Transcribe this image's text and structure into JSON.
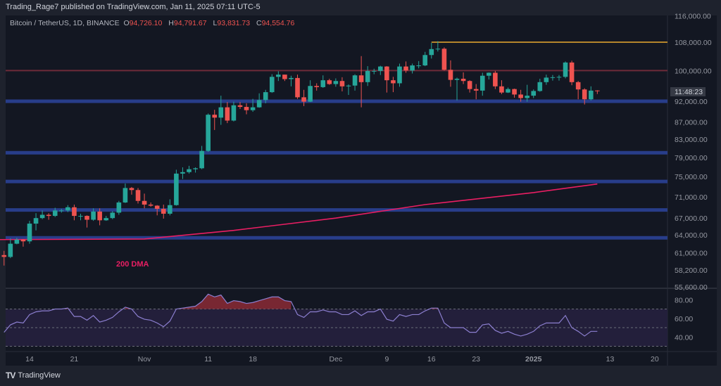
{
  "header": {
    "published": "Trading_Rage7 published on TradingView.com, Jan 11, 2025 07:11 UTC-5"
  },
  "legend": {
    "symbol": "Bitcoin / TetherUS, 1D, BINANCE",
    "o_label": "O",
    "o": "94,726.10",
    "h_label": "H",
    "h": "94,791.67",
    "l_label": "L",
    "l": "93,831.73",
    "c_label": "C",
    "c": "94,554.76"
  },
  "footer": {
    "brand": "TradingView",
    "logo": "TV"
  },
  "colors": {
    "up": "#26a69a",
    "down": "#ef5350",
    "ma": "#e91e63",
    "level_blue": "#283d8a",
    "level_red": "#6e2b3a",
    "level_orange": "#b5852c",
    "rsi_line": "#8c7fd0",
    "rsi_band": "#231f3b",
    "overbought_fill": "#8b2a35"
  },
  "chart_data": [
    {
      "type": "candlestick",
      "title": "",
      "scale": "log",
      "ylim": [
        55600,
        116000
      ],
      "price_ticks": [
        "116,000.00",
        "108,000.00",
        "100,000.00",
        "92,000.00",
        "87,000.00",
        "83,000.00",
        "79,000.00",
        "75,000.00",
        "71,000.00",
        "67,000.00",
        "64,000.00",
        "61,000.00",
        "58,200.00",
        "55,600.00"
      ],
      "countdown": "11:48:23",
      "x_ticks": [
        {
          "label": "14",
          "date": "2024-10-14"
        },
        {
          "label": "21",
          "date": "2024-10-21"
        },
        {
          "label": "Nov",
          "date": "2024-11-01"
        },
        {
          "label": "11",
          "date": "2024-11-11"
        },
        {
          "label": "18",
          "date": "2024-11-18"
        },
        {
          "label": "Dec",
          "date": "2024-12-01"
        },
        {
          "label": "9",
          "date": "2024-12-09"
        },
        {
          "label": "16",
          "date": "2024-12-16"
        },
        {
          "label": "23",
          "date": "2024-12-23"
        },
        {
          "label": "2025",
          "date": "2025-01-01"
        },
        {
          "label": "13",
          "date": "2025-01-13"
        },
        {
          "label": "20",
          "date": "2025-01-20"
        }
      ],
      "x_range": [
        "2024-10-09",
        "2025-01-22"
      ],
      "start_date": "2024-10-10",
      "ohlc": [
        [
          60600,
          61300,
          58900,
          60300
        ],
        [
          60300,
          63400,
          60100,
          62500
        ],
        [
          62500,
          63500,
          62400,
          63200
        ],
        [
          63200,
          63300,
          62000,
          62900
        ],
        [
          62900,
          66500,
          62500,
          66000
        ],
        [
          66000,
          67900,
          64800,
          67000
        ],
        [
          67000,
          68400,
          66800,
          67600
        ],
        [
          67600,
          67900,
          66700,
          67400
        ],
        [
          67400,
          68900,
          67200,
          68400
        ],
        [
          68400,
          68700,
          68000,
          68400
        ],
        [
          68400,
          69400,
          68100,
          69000
        ],
        [
          69000,
          69500,
          66600,
          67400
        ],
        [
          67400,
          67800,
          66600,
          67400
        ],
        [
          67400,
          67500,
          65300,
          66700
        ],
        [
          66700,
          68800,
          66500,
          68200
        ],
        [
          68200,
          68800,
          65700,
          66600
        ],
        [
          66600,
          67400,
          66500,
          67000
        ],
        [
          67000,
          68300,
          66800,
          68000
        ],
        [
          68000,
          70200,
          67600,
          69900
        ],
        [
          69900,
          73600,
          69800,
          72700
        ],
        [
          72700,
          72900,
          71400,
          72300
        ],
        [
          72300,
          72700,
          69700,
          70200
        ],
        [
          70200,
          71600,
          68800,
          69500
        ],
        [
          69500,
          69900,
          69100,
          69300
        ],
        [
          69300,
          69400,
          67500,
          68700
        ],
        [
          68700,
          69500,
          66900,
          67800
        ],
        [
          67800,
          70500,
          67500,
          69400
        ],
        [
          69400,
          76400,
          69300,
          75600
        ],
        [
          75600,
          76900,
          74500,
          75900
        ],
        [
          75900,
          77200,
          75600,
          76500
        ],
        [
          76500,
          76900,
          75800,
          76700
        ],
        [
          76700,
          81500,
          76500,
          80400
        ],
        [
          80400,
          89000,
          80200,
          88700
        ],
        [
          88700,
          89900,
          85100,
          88000
        ],
        [
          88000,
          93400,
          86300,
          90500
        ],
        [
          90500,
          91800,
          86700,
          87300
        ],
        [
          87300,
          91900,
          87100,
          91000
        ],
        [
          91000,
          91800,
          90100,
          90600
        ],
        [
          90600,
          91500,
          88800,
          89800
        ],
        [
          89800,
          92600,
          89400,
          90500
        ],
        [
          90500,
          94000,
          90400,
          92300
        ],
        [
          92300,
          94900,
          91500,
          94300
        ],
        [
          94300,
          99000,
          94100,
          98300
        ],
        [
          98300,
          99800,
          97200,
          98900
        ],
        [
          98900,
          98900,
          97200,
          97700
        ],
        [
          97700,
          98600,
          95800,
          98000
        ],
        [
          98000,
          98900,
          92600,
          93000
        ],
        [
          93000,
          94900,
          90800,
          91900
        ],
        [
          91900,
          97400,
          91800,
          95900
        ],
        [
          95900,
          96600,
          94700,
          95600
        ],
        [
          95600,
          98700,
          95400,
          97400
        ],
        [
          97400,
          97800,
          96200,
          96400
        ],
        [
          96400,
          97900,
          95700,
          97200
        ],
        [
          97200,
          98200,
          94500,
          95800
        ],
        [
          95800,
          96300,
          93600,
          96000
        ],
        [
          96000,
          99000,
          94700,
          98700
        ],
        [
          98700,
          104000,
          90500,
          96900
        ],
        [
          96900,
          101200,
          95900,
          99900
        ],
        [
          99900,
          100500,
          99000,
          99900
        ],
        [
          99900,
          101300,
          98800,
          101100
        ],
        [
          101100,
          101200,
          94200,
          97400
        ],
        [
          97400,
          98300,
          94300,
          96600
        ],
        [
          96600,
          101900,
          95700,
          101100
        ],
        [
          101100,
          102500,
          99400,
          100000
        ],
        [
          100000,
          101900,
          99200,
          101400
        ],
        [
          101400,
          102600,
          100600,
          101400
        ],
        [
          101400,
          105200,
          101200,
          104300
        ],
        [
          104300,
          107800,
          103300,
          106000
        ],
        [
          106000,
          108300,
          105300,
          106100
        ],
        [
          106100,
          106500,
          100000,
          100200
        ],
        [
          100200,
          102800,
          95700,
          97500
        ],
        [
          97500,
          98100,
          92200,
          97800
        ],
        [
          97800,
          99500,
          96400,
          97200
        ],
        [
          97200,
          97400,
          94200,
          95100
        ],
        [
          95100,
          96400,
          92500,
          94700
        ],
        [
          94700,
          99400,
          93400,
          98600
        ],
        [
          98600,
          99500,
          97600,
          99400
        ],
        [
          99400,
          99900,
          95100,
          95800
        ],
        [
          95800,
          97400,
          93800,
          94200
        ],
        [
          94200,
          95500,
          94100,
          95100
        ],
        [
          95100,
          95200,
          92900,
          93700
        ],
        [
          93700,
          94900,
          91900,
          92800
        ],
        [
          92800,
          96200,
          91900,
          93400
        ],
        [
          93400,
          95000,
          92800,
          94600
        ],
        [
          94600,
          97800,
          94400,
          96900
        ],
        [
          96900,
          98900,
          96200,
          98100
        ],
        [
          98100,
          98800,
          97300,
          98200
        ],
        [
          98200,
          98800,
          97300,
          98300
        ],
        [
          98300,
          102500,
          97900,
          102200
        ],
        [
          102200,
          102700,
          96100,
          96900
        ],
        [
          96900,
          97200,
          92500,
          95000
        ],
        [
          95000,
          95300,
          91200,
          92500
        ],
        [
          92500,
          95800,
          92200,
          94700
        ],
        [
          94726.1,
          94791.67,
          93831.73,
          94554.76
        ]
      ],
      "ma_200": {
        "label": "200 DMA",
        "points": [
          [
            "2024-10-09",
            63200
          ],
          [
            "2024-11-01",
            63300
          ],
          [
            "2024-11-15",
            64800
          ],
          [
            "2024-12-01",
            67000
          ],
          [
            "2024-12-15",
            69500
          ],
          [
            "2025-01-01",
            71800
          ],
          [
            "2025-01-11",
            73500
          ]
        ]
      },
      "levels": [
        {
          "price": 108000,
          "color": "orange",
          "from": "2024-12-16"
        },
        {
          "price": 100000,
          "color": "red"
        },
        {
          "price": 92000,
          "color": "blue"
        },
        {
          "price": 80000,
          "color": "blue"
        },
        {
          "price": 74000,
          "color": "blue"
        },
        {
          "price": 68500,
          "color": "blue"
        },
        {
          "price": 63500,
          "color": "blue"
        }
      ]
    },
    {
      "type": "line",
      "title": "",
      "ylim": [
        25,
        90
      ],
      "y_ticks": [
        "80.00",
        "60.00",
        "40.00"
      ],
      "bands": [
        70,
        50,
        30
      ],
      "values": [
        45,
        53,
        56,
        55,
        64,
        67,
        68,
        68,
        70,
        70,
        71,
        62,
        62,
        58,
        63,
        56,
        58,
        61,
        67,
        72,
        70,
        62,
        59,
        58,
        55,
        51,
        57,
        70,
        71,
        72,
        73,
        78,
        86,
        83,
        85,
        76,
        79,
        78,
        76,
        77,
        79,
        81,
        83,
        83,
        79,
        78,
        64,
        61,
        67,
        67,
        69,
        67,
        67,
        64,
        64,
        68,
        63,
        67,
        67,
        70,
        59,
        57,
        64,
        62,
        64,
        64,
        68,
        71,
        71,
        55,
        50,
        50,
        50,
        45,
        45,
        53,
        54,
        47,
        44,
        46,
        43,
        41,
        43,
        46,
        52,
        55,
        55,
        55,
        63,
        50,
        46,
        41,
        46,
        46
      ]
    }
  ]
}
